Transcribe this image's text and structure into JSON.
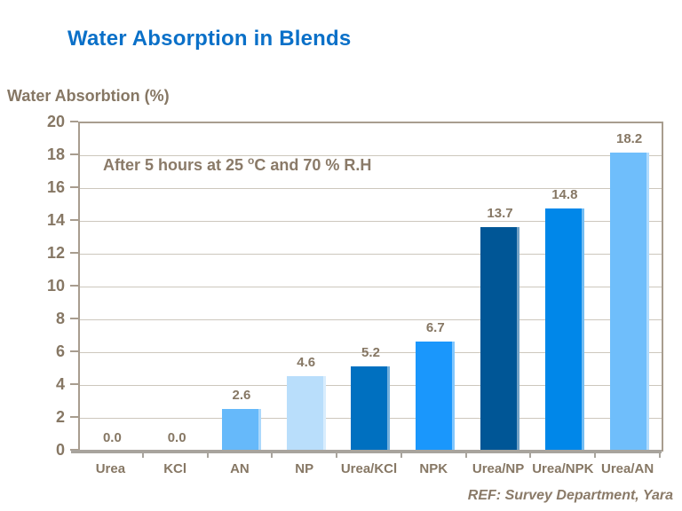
{
  "title": "Water Absorption in Blends",
  "y_axis_label": "Water Absorbtion (%)",
  "annotation": {
    "part1": "After 5 hours at 25 ",
    "sup": "o",
    "part2": "C and 70 % R.H"
  },
  "footer": "REF: Survey Department,  Yara",
  "colors": {
    "title_blue": "#0a70c8",
    "text_brown": "#867764",
    "gridline": "#cdc7bd",
    "axis_border": "#a89d8f",
    "baseline": "#a8a49d"
  },
  "chart_data": {
    "type": "bar",
    "title": "Water Absorption in Blends",
    "xlabel": "",
    "ylabel": "Water Absorbtion (%)",
    "categories": [
      "Urea",
      "KCl",
      "AN",
      "NP",
      "Urea/KCl",
      "NPK",
      "Urea/NP",
      "Urea/NPK",
      "Urea/AN"
    ],
    "values": [
      0.0,
      0.0,
      2.6,
      4.6,
      5.2,
      6.7,
      13.7,
      14.8,
      18.2
    ],
    "value_labels": [
      "0.0",
      "0.0",
      "2.6",
      "4.6",
      "5.2",
      "6.7",
      "13.7",
      "14.8",
      "18.2"
    ],
    "bar_colors": [
      "none",
      "none",
      "#66b9fa",
      "#b9defb",
      "#0070c0",
      "#1a97fc",
      "#005696",
      "#0087e9",
      "#6fbefb"
    ],
    "ylim": [
      0,
      20
    ],
    "yticks": [
      0,
      2,
      4,
      6,
      8,
      10,
      12,
      14,
      16,
      18,
      20
    ],
    "grid": true,
    "legend": false,
    "annotation": "After 5 hours at 25 oC and 70 % R.H"
  }
}
